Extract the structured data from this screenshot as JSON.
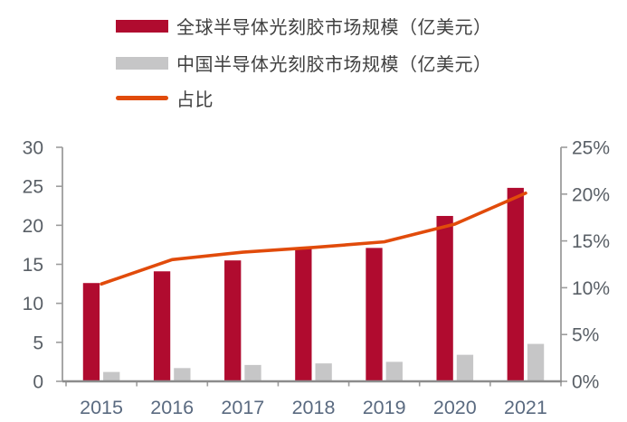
{
  "legend": {
    "items": [
      {
        "label": "全球半导体光刻胶市场规模（亿美元）",
        "color": "#B00B2F",
        "swatch": "bar"
      },
      {
        "label": "中国半导体光刻胶市场规模（亿美元）",
        "color": "#C6C6C7",
        "swatch": "bar"
      },
      {
        "label": "占比",
        "color": "#E14B0B",
        "swatch": "line"
      }
    ]
  },
  "chart_data": {
    "type": "bar+line combo",
    "title": "",
    "categories": [
      "2015",
      "2016",
      "2017",
      "2018",
      "2019",
      "2020",
      "2021"
    ],
    "series": [
      {
        "name": "全球半导体光刻胶市场规模（亿美元）",
        "type": "bar",
        "axis": "left",
        "color": "#B00B2F",
        "values": [
          12.6,
          14.1,
          15.5,
          17.0,
          17.1,
          21.2,
          24.8
        ]
      },
      {
        "name": "中国半导体光刻胶市场规模（亿美元）",
        "type": "bar",
        "axis": "left",
        "color": "#C6C6C7",
        "values": [
          1.2,
          1.7,
          2.1,
          2.3,
          2.5,
          3.4,
          4.8
        ]
      },
      {
        "name": "占比",
        "type": "line",
        "axis": "right",
        "unit": "%",
        "color": "#E14B0B",
        "values": [
          10.4,
          13.0,
          13.8,
          14.3,
          14.9,
          16.8,
          20.1
        ]
      }
    ],
    "left_axis": {
      "min": 0,
      "max": 30,
      "step": 5,
      "tick_labels": [
        "0",
        "5",
        "10",
        "15",
        "20",
        "25",
        "30"
      ]
    },
    "right_axis": {
      "min": 0,
      "max": 25,
      "step": 5,
      "tick_labels": [
        "0%",
        "5%",
        "10%",
        "15%",
        "20%",
        "25%"
      ]
    },
    "grid": false,
    "legend_position": "top-left"
  }
}
